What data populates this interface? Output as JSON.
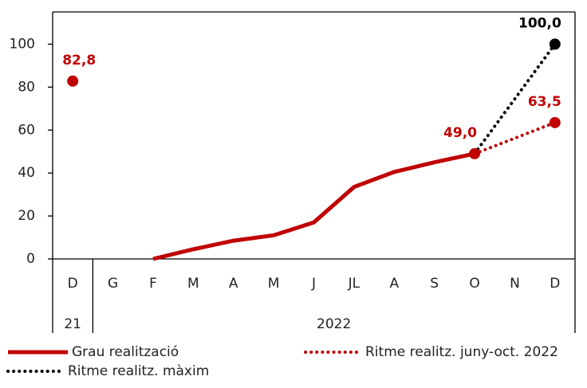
{
  "chart_data": {
    "type": "line",
    "categories": [
      "D",
      "G",
      "F",
      "M",
      "A",
      "M",
      "J",
      "JL",
      "A",
      "S",
      "O",
      "N",
      "D"
    ],
    "category_groups": [
      "21",
      "2022",
      "2022",
      "2022",
      "2022",
      "2022",
      "2022",
      "2022",
      "2022",
      "2022",
      "2022",
      "2022",
      "2022"
    ],
    "series": [
      {
        "name": "Grau realització",
        "color": "#c00000",
        "style": "solid",
        "values": [
          82.8,
          null,
          0,
          4.5,
          8.5,
          11,
          17,
          33.5,
          40.5,
          45,
          49,
          null,
          null
        ],
        "value_labels": [
          "82,8",
          null,
          null,
          null,
          null,
          null,
          null,
          null,
          null,
          null,
          "49,0",
          null,
          null
        ]
      },
      {
        "name": "Ritme realitz. juny-oct. 2022",
        "color": "#c00000",
        "style": "dotted",
        "values": [
          null,
          null,
          null,
          null,
          null,
          null,
          null,
          null,
          null,
          null,
          49,
          56.2,
          63.5
        ],
        "value_labels": [
          null,
          null,
          null,
          null,
          null,
          null,
          null,
          null,
          null,
          null,
          null,
          null,
          "63,5"
        ]
      },
      {
        "name": "Ritme realitz. màxim",
        "color": "#000000",
        "style": "dotted",
        "values": [
          null,
          null,
          null,
          null,
          null,
          null,
          null,
          null,
          null,
          null,
          49,
          74.5,
          100
        ],
        "value_labels": [
          null,
          null,
          null,
          null,
          null,
          null,
          null,
          null,
          null,
          null,
          null,
          null,
          "100,0"
        ]
      }
    ],
    "ylim": [
      0,
      115
    ],
    "yticks": [
      0,
      20,
      40,
      60,
      80,
      100
    ],
    "grid": false
  }
}
